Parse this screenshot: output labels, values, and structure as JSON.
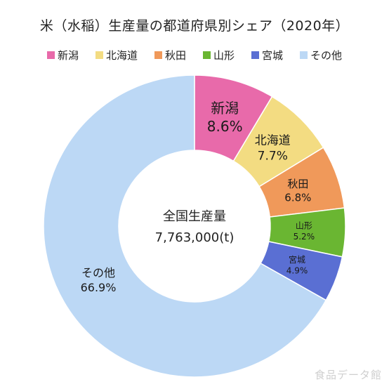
{
  "chart_data": {
    "type": "pie",
    "title": "米（水稲）生産量の都道府県別シェア（2020年）",
    "center_label": "全国生産量",
    "center_value": "7,763,000(t)",
    "slices": [
      {
        "name": "新潟",
        "value": 8.6,
        "value_label": "8.6%",
        "color": "#e86aaa"
      },
      {
        "name": "北海道",
        "value": 7.7,
        "value_label": "7.7%",
        "color": "#f3dc82"
      },
      {
        "name": "秋田",
        "value": 6.8,
        "value_label": "6.8%",
        "color": "#f0995a"
      },
      {
        "name": "山形",
        "value": 5.2,
        "value_label": "5.2%",
        "color": "#6ab632"
      },
      {
        "name": "宮城",
        "value": 4.9,
        "value_label": "4.9%",
        "color": "#5a6fd3"
      },
      {
        "name": "その他",
        "value": 66.9,
        "value_label": "66.9%",
        "color": "#bcd8f5"
      }
    ],
    "legend_position": "top"
  },
  "watermark": "食品データ館"
}
